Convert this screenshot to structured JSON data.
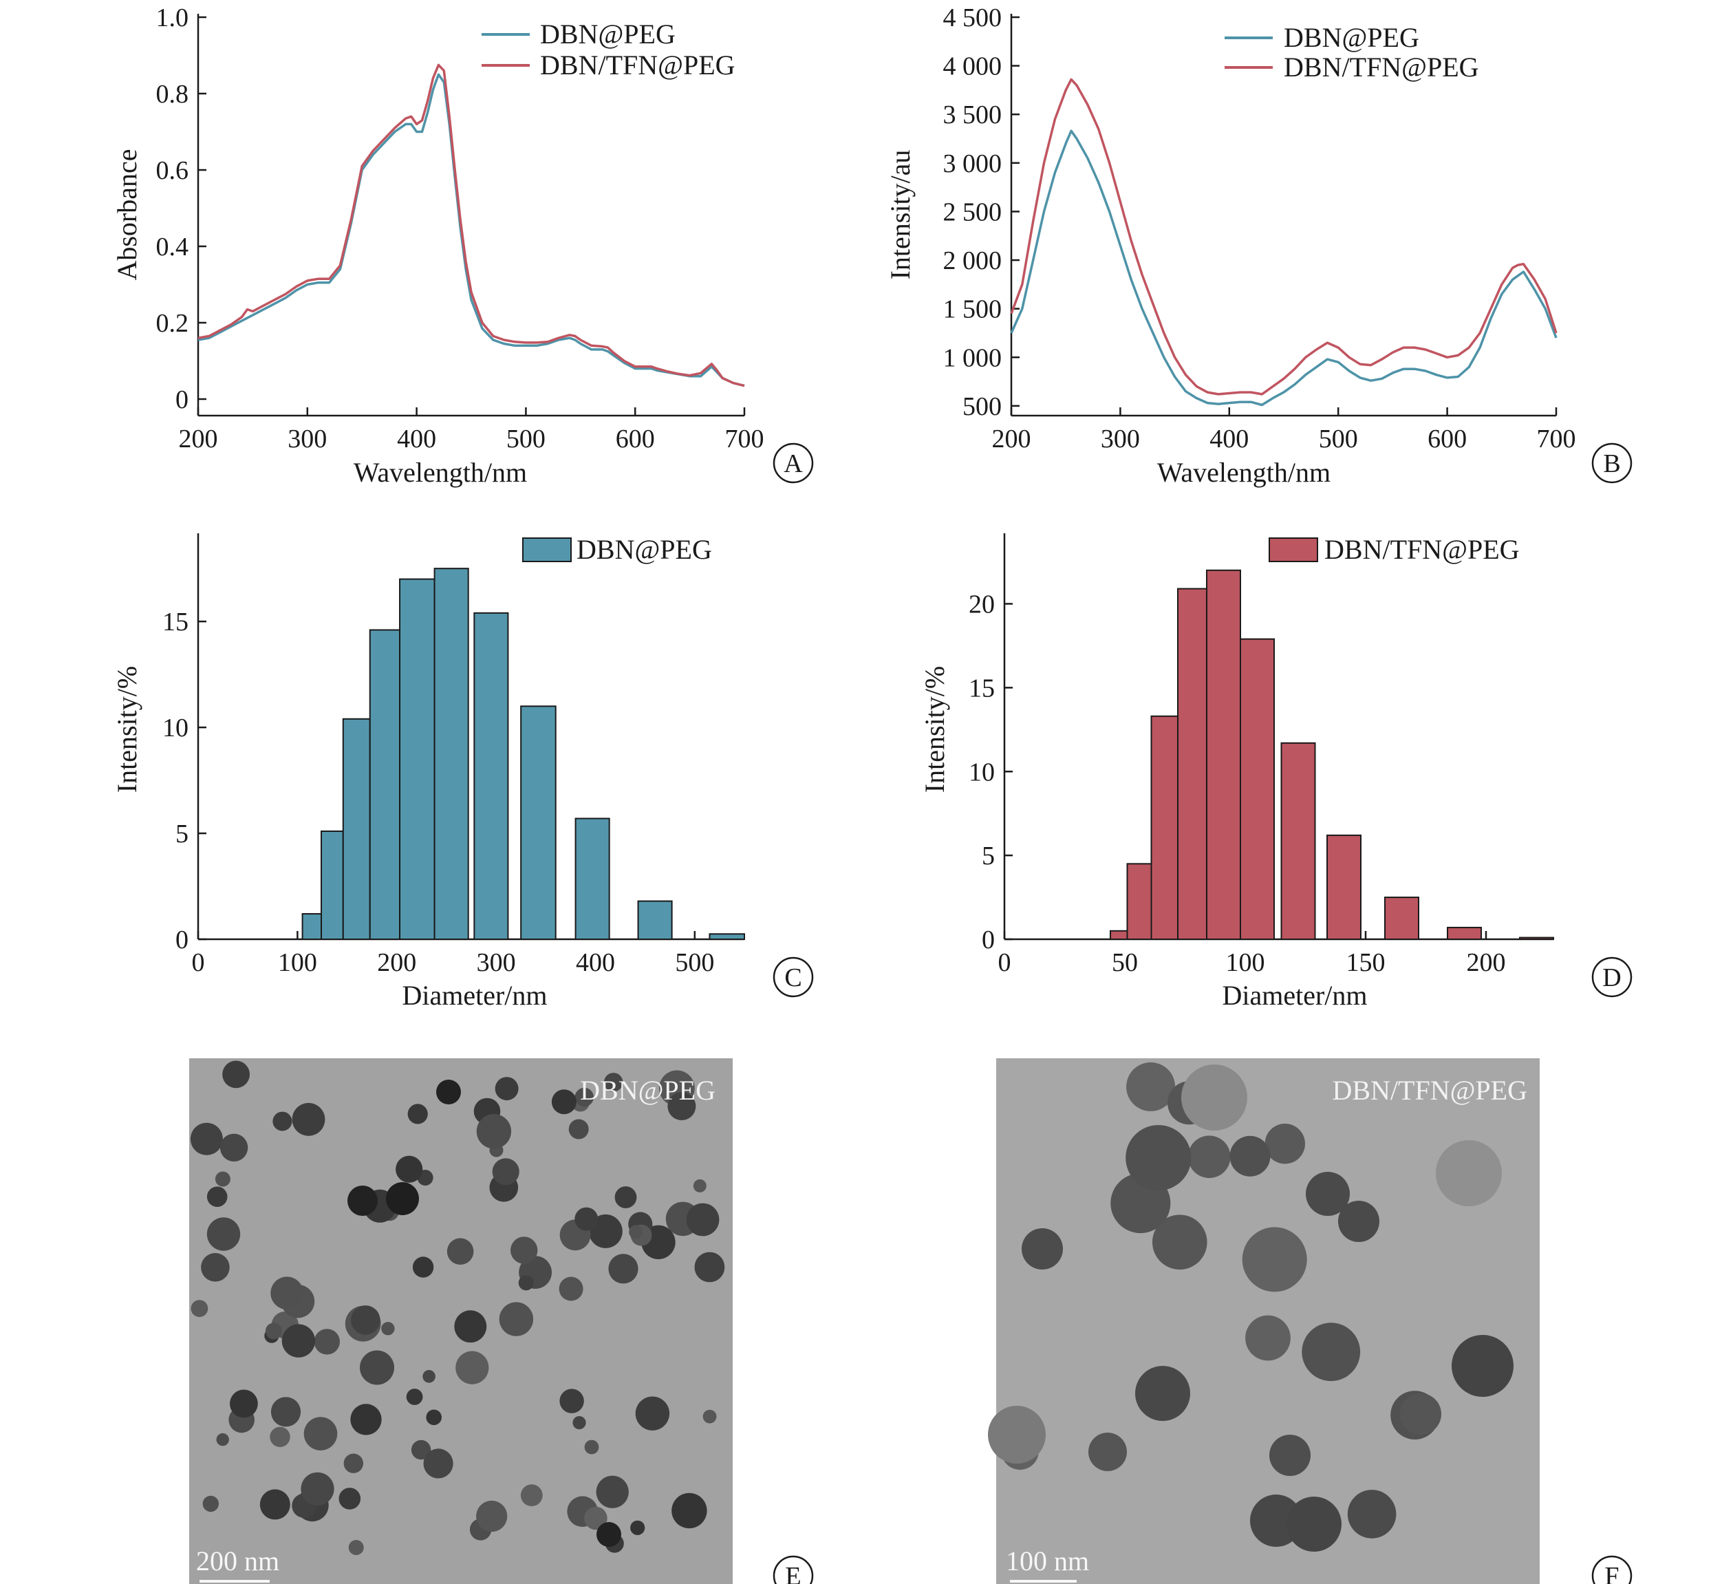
{
  "colors": {
    "blue": "#4e93a8",
    "red": "#c05560",
    "bar_blue": "#5497ac",
    "bar_red": "#bc5660",
    "axis": "#1a1a1a",
    "tem_bg": "#9d9d9d"
  },
  "chart_data": [
    {
      "id": "A",
      "type": "line",
      "panel_letter": "A",
      "xlabel": "Wavelength/nm",
      "ylabel": "Absorbance",
      "xlim": [
        200,
        700
      ],
      "ylim": [
        0,
        1.0
      ],
      "xticks": [
        200,
        300,
        400,
        500,
        600,
        700
      ],
      "xtick_labels": [
        "200",
        "300",
        "400",
        "500",
        "600",
        "700"
      ],
      "yticks": [
        0,
        0.2,
        0.4,
        0.6,
        0.8,
        1.0
      ],
      "ytick_labels": [
        "0",
        "0.2",
        "0.4",
        "0.6",
        "0.8",
        "1.0"
      ],
      "legend_position": "top-right",
      "series": [
        {
          "name": "DBN@PEG",
          "color": "#4e93a8",
          "x": [
            200,
            210,
            220,
            230,
            240,
            250,
            260,
            270,
            280,
            290,
            300,
            310,
            320,
            330,
            340,
            350,
            360,
            370,
            380,
            390,
            395,
            400,
            405,
            410,
            415,
            420,
            425,
            430,
            435,
            440,
            445,
            450,
            460,
            470,
            480,
            490,
            500,
            510,
            520,
            530,
            540,
            545,
            550,
            560,
            570,
            575,
            580,
            590,
            600,
            610,
            615,
            620,
            630,
            640,
            650,
            660,
            670,
            680,
            690,
            700
          ],
          "y": [
            0.155,
            0.16,
            0.175,
            0.19,
            0.205,
            0.22,
            0.235,
            0.25,
            0.265,
            0.285,
            0.3,
            0.305,
            0.305,
            0.34,
            0.46,
            0.6,
            0.64,
            0.67,
            0.7,
            0.72,
            0.72,
            0.7,
            0.7,
            0.75,
            0.81,
            0.85,
            0.83,
            0.72,
            0.58,
            0.45,
            0.34,
            0.26,
            0.185,
            0.155,
            0.145,
            0.14,
            0.14,
            0.14,
            0.145,
            0.155,
            0.16,
            0.155,
            0.145,
            0.13,
            0.13,
            0.125,
            0.115,
            0.095,
            0.08,
            0.08,
            0.08,
            0.075,
            0.07,
            0.065,
            0.06,
            0.06,
            0.085,
            0.055,
            0.042,
            0.035
          ]
        },
        {
          "name": "DBN/TFN@PEG",
          "color": "#c05560",
          "x": [
            200,
            210,
            220,
            230,
            240,
            245,
            250,
            260,
            270,
            280,
            290,
            300,
            310,
            320,
            330,
            340,
            350,
            360,
            370,
            380,
            390,
            395,
            400,
            405,
            410,
            415,
            420,
            425,
            430,
            435,
            440,
            445,
            450,
            460,
            470,
            480,
            490,
            500,
            510,
            520,
            530,
            540,
            545,
            550,
            560,
            570,
            575,
            580,
            590,
            600,
            610,
            615,
            620,
            630,
            640,
            650,
            660,
            665,
            670,
            675,
            680,
            690,
            700
          ],
          "y": [
            0.16,
            0.165,
            0.18,
            0.195,
            0.215,
            0.235,
            0.23,
            0.245,
            0.26,
            0.275,
            0.295,
            0.31,
            0.315,
            0.315,
            0.35,
            0.47,
            0.61,
            0.65,
            0.68,
            0.71,
            0.735,
            0.74,
            0.72,
            0.73,
            0.78,
            0.84,
            0.875,
            0.86,
            0.74,
            0.6,
            0.47,
            0.36,
            0.28,
            0.2,
            0.165,
            0.155,
            0.15,
            0.148,
            0.148,
            0.15,
            0.16,
            0.168,
            0.165,
            0.155,
            0.14,
            0.138,
            0.135,
            0.122,
            0.1,
            0.085,
            0.085,
            0.085,
            0.08,
            0.072,
            0.066,
            0.062,
            0.068,
            0.08,
            0.092,
            0.075,
            0.055,
            0.042,
            0.035
          ]
        }
      ]
    },
    {
      "id": "B",
      "type": "line",
      "panel_letter": "B",
      "xlabel": "Wavelength/nm",
      "ylabel": "Intensity/au",
      "xlim": [
        200,
        700
      ],
      "ylim": [
        400,
        4500
      ],
      "xticks": [
        200,
        300,
        400,
        500,
        600,
        700
      ],
      "xtick_labels": [
        "200",
        "300",
        "400",
        "500",
        "600",
        "700"
      ],
      "yticks": [
        500,
        1000,
        1500,
        2000,
        2500,
        3000,
        3500,
        4000,
        4500
      ],
      "ytick_labels": [
        "500",
        "1 000",
        "1 500",
        "2 000",
        "2 500",
        "3 000",
        "3 500",
        "4 000",
        "4 500"
      ],
      "legend_position": "top-center",
      "series": [
        {
          "name": "DBN@PEG",
          "color": "#4e93a8",
          "x": [
            200,
            210,
            220,
            230,
            240,
            250,
            255,
            260,
            270,
            280,
            290,
            300,
            310,
            320,
            330,
            340,
            350,
            360,
            370,
            380,
            390,
            400,
            410,
            420,
            430,
            440,
            450,
            460,
            470,
            480,
            490,
            500,
            510,
            520,
            530,
            540,
            550,
            560,
            570,
            580,
            590,
            600,
            610,
            620,
            630,
            640,
            650,
            660,
            665,
            670,
            680,
            690,
            700
          ],
          "y": [
            1250,
            1500,
            2000,
            2500,
            2900,
            3200,
            3330,
            3250,
            3050,
            2800,
            2500,
            2150,
            1800,
            1500,
            1250,
            1000,
            800,
            650,
            580,
            530,
            520,
            530,
            540,
            540,
            510,
            580,
            640,
            720,
            820,
            900,
            980,
            950,
            860,
            790,
            760,
            780,
            840,
            880,
            880,
            860,
            820,
            790,
            800,
            900,
            1100,
            1400,
            1650,
            1800,
            1840,
            1880,
            1700,
            1500,
            1200
          ]
        },
        {
          "name": "DBN/TFN@PEG",
          "color": "#c05560",
          "x": [
            200,
            210,
            220,
            230,
            240,
            250,
            255,
            260,
            270,
            280,
            290,
            300,
            310,
            320,
            330,
            340,
            350,
            360,
            370,
            380,
            390,
            400,
            410,
            420,
            430,
            440,
            450,
            460,
            470,
            480,
            490,
            500,
            510,
            520,
            530,
            540,
            550,
            560,
            570,
            580,
            590,
            600,
            610,
            620,
            630,
            640,
            650,
            660,
            665,
            670,
            680,
            690,
            700
          ],
          "y": [
            1450,
            1750,
            2400,
            3000,
            3450,
            3750,
            3860,
            3800,
            3600,
            3350,
            3000,
            2600,
            2200,
            1850,
            1550,
            1250,
            1000,
            820,
            700,
            640,
            620,
            630,
            640,
            640,
            620,
            700,
            780,
            880,
            1000,
            1080,
            1150,
            1100,
            1000,
            930,
            920,
            980,
            1050,
            1100,
            1100,
            1080,
            1040,
            1000,
            1020,
            1100,
            1250,
            1500,
            1750,
            1920,
            1950,
            1960,
            1800,
            1600,
            1250
          ]
        }
      ]
    },
    {
      "id": "C",
      "type": "bar",
      "panel_letter": "C",
      "xlabel": "Diameter/nm",
      "ylabel": "Intensity/%",
      "xlim": [
        0,
        550
      ],
      "ylim": [
        0,
        19
      ],
      "xticks": [
        0,
        100,
        200,
        300,
        400,
        500
      ],
      "xtick_labels": [
        "0",
        "100",
        "200",
        "300",
        "400",
        "500"
      ],
      "yticks": [
        0,
        5,
        10,
        15
      ],
      "ytick_labels": [
        "0",
        "5",
        "10",
        "15"
      ],
      "legend_position": "top-right",
      "series": [
        {
          "name": "DBN@PEG",
          "color": "#5497ac",
          "bars": [
            {
              "x0": 105,
              "x1": 124,
              "value": 1.2
            },
            {
              "x0": 124,
              "x1": 146,
              "value": 5.1
            },
            {
              "x0": 146,
              "x1": 173,
              "value": 10.4
            },
            {
              "x0": 173,
              "x1": 203,
              "value": 14.6
            },
            {
              "x0": 203,
              "x1": 238,
              "value": 17.0
            },
            {
              "x0": 238,
              "x1": 272,
              "value": 17.5
            },
            {
              "x0": 278,
              "x1": 312,
              "value": 15.4
            },
            {
              "x0": 325,
              "x1": 360,
              "value": 11.0
            },
            {
              "x0": 380,
              "x1": 414,
              "value": 5.7
            },
            {
              "x0": 443,
              "x1": 477,
              "value": 1.8
            },
            {
              "x0": 515,
              "x1": 550,
              "value": 0.25
            }
          ]
        }
      ]
    },
    {
      "id": "D",
      "type": "bar",
      "panel_letter": "D",
      "xlabel": "Diameter/nm",
      "ylabel": "Intensity/%",
      "xlim": [
        0,
        228
      ],
      "ylim": [
        0,
        24
      ],
      "xticks": [
        0,
        50,
        100,
        150,
        200
      ],
      "xtick_labels": [
        "0",
        "50",
        "100",
        "150",
        "200"
      ],
      "yticks": [
        0,
        5,
        10,
        15,
        20
      ],
      "ytick_labels": [
        "0",
        "5",
        "10",
        "15",
        "20"
      ],
      "legend_position": "top-right",
      "series": [
        {
          "name": "DBN/TFN@PEG",
          "color": "#bc5660",
          "bars": [
            {
              "x0": 44,
              "x1": 51,
              "value": 0.5
            },
            {
              "x0": 51,
              "x1": 61,
              "value": 4.5
            },
            {
              "x0": 61,
              "x1": 72,
              "value": 13.3
            },
            {
              "x0": 72,
              "x1": 84,
              "value": 20.9
            },
            {
              "x0": 84,
              "x1": 98,
              "value": 22.0
            },
            {
              "x0": 98,
              "x1": 112,
              "value": 17.9
            },
            {
              "x0": 115,
              "x1": 129,
              "value": 11.7
            },
            {
              "x0": 134,
              "x1": 148,
              "value": 6.2
            },
            {
              "x0": 158,
              "x1": 172,
              "value": 2.5
            },
            {
              "x0": 184,
              "x1": 198,
              "value": 0.7
            },
            {
              "x0": 214,
              "x1": 228,
              "value": 0.1
            }
          ]
        }
      ]
    }
  ],
  "tem_panels": [
    {
      "id": "E",
      "panel_letter": "E",
      "label": "DBN@PEG",
      "scale_bar_label": "200 nm"
    },
    {
      "id": "F",
      "panel_letter": "F",
      "label": "DBN/TFN@PEG",
      "scale_bar_label": "100 nm"
    }
  ]
}
